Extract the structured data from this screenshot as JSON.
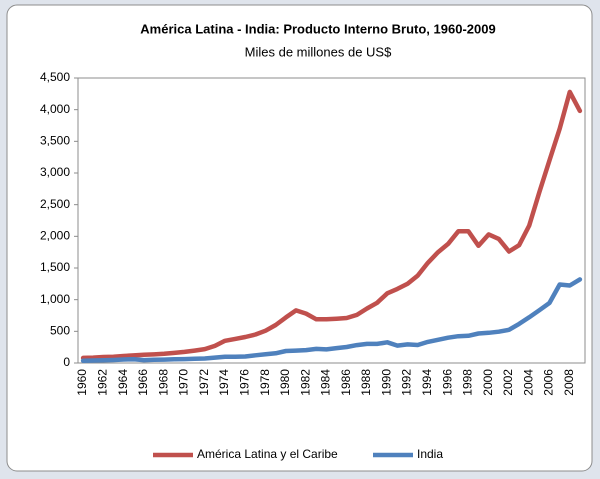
{
  "chart_data": {
    "type": "line",
    "title": "América Latina - India: Producto Interno Bruto, 1960-2009",
    "subtitle": "Miles de millones de US$",
    "categories": [
      "1960",
      null,
      "1962",
      null,
      "1964",
      null,
      "1966",
      null,
      "1968",
      null,
      "1970",
      null,
      "1972",
      null,
      "1974",
      null,
      "1976",
      null,
      "1978",
      null,
      "1980",
      null,
      "1982",
      null,
      "1984",
      null,
      "1986",
      null,
      "1988",
      null,
      "1990",
      null,
      "1992",
      null,
      "1994",
      null,
      "1996",
      null,
      "1998",
      null,
      "2000",
      null,
      "2002",
      null,
      "2004",
      null,
      "2006",
      null,
      "2008",
      null
    ],
    "series": [
      {
        "name": "América Latina y el Caribe",
        "color": "#c0504d",
        "values": [
          80,
          85,
          95,
          100,
          110,
          120,
          130,
          135,
          145,
          160,
          175,
          195,
          220,
          270,
          350,
          380,
          410,
          450,
          510,
          600,
          720,
          830,
          780,
          690,
          690,
          700,
          710,
          760,
          860,
          950,
          1100,
          1170,
          1250,
          1380,
          1580,
          1750,
          1880,
          2080,
          2080,
          1850,
          2030,
          1960,
          1760,
          1860,
          2170,
          2700,
          3200,
          3700,
          4280,
          3980
        ]
      },
      {
        "name": "India",
        "color": "#4f81bd",
        "values": [
          37,
          39,
          42,
          48,
          56,
          59,
          46,
          50,
          53,
          58,
          62,
          67,
          71,
          85,
          99,
          98,
          103,
          121,
          137,
          153,
          189,
          196,
          203,
          222,
          215,
          236,
          253,
          283,
          301,
          301,
          327,
          274,
          293,
          284,
          333,
          367,
          400,
          423,
          429,
          466,
          477,
          494,
          524,
          618,
          722,
          834,
          949,
          1239,
          1224,
          1320
        ]
      }
    ],
    "ylim": [
      0,
      4500
    ],
    "yticks": [
      0,
      500,
      {
        "value": 1000,
        "label": "1,000"
      },
      {
        "value": 1500,
        "label": "1,500"
      },
      {
        "value": 2000,
        "label": "2,000"
      },
      {
        "value": 2500,
        "label": "2,500"
      },
      {
        "value": 3000,
        "label": "3,000"
      },
      {
        "value": 3500,
        "label": "3,500"
      },
      {
        "value": 4000,
        "label": "4,000"
      },
      {
        "value": 4500,
        "label": "4,500"
      }
    ],
    "grid": false,
    "legend": "bottom"
  }
}
